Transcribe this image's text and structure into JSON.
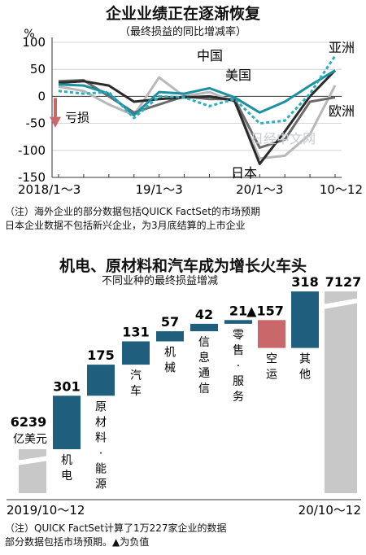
{
  "top_chart": {
    "title": "企业业绩正在逐渐恢复",
    "subtitle": "（最终损益的同比增减率）",
    "unit": "%",
    "loss_label": "亏损",
    "note_lines": [
      "（注）海外企业的部分数据包括QUICK FactSet的市场预期",
      "日本企业数据不包括新兴企业，为3月底结算的上市企业"
    ],
    "watermark": "日经中文网"
  },
  "bottom_chart": {
    "title": "机电、原材料和汽车成为增长火车头",
    "subtitle": "不同业种的最终损益增减",
    "start_label": "2019/10～12",
    "end_label": "20/10～12",
    "start_unit": "亿美元",
    "note_lines": [
      "（注）QUICK FactSet计算了1万227家企业的数据",
      "部分数据包括市场预期。▲为负值"
    ]
  },
  "chart_data": [
    {
      "type": "line",
      "ylim": [
        -150,
        100
      ],
      "yticks": [
        100,
        50,
        0,
        -50,
        -100,
        -150
      ],
      "x_tick_labels": [
        "2018/1～3",
        "19/1～3",
        "20/1～3",
        "10～12"
      ],
      "x": [
        "2018/1～3",
        "2018/4～6",
        "2018/7～9",
        "2018/10～12",
        "2019/1～3",
        "2019/4～6",
        "2019/7～9",
        "2019/10～12",
        "2020/1～3",
        "2020/4～6",
        "2020/7～9",
        "2020/10～12"
      ],
      "series": [
        {
          "name": "亚洲",
          "color": "#2ab0bd",
          "dash": true,
          "values": [
            10,
            5,
            8,
            -40,
            0,
            -2,
            -18,
            -5,
            -50,
            -45,
            5,
            75
          ]
        },
        {
          "name": "中国",
          "color": "#1e8fa0",
          "dash": false,
          "values": [
            22,
            20,
            5,
            -35,
            8,
            5,
            15,
            -2,
            -30,
            -10,
            20,
            48
          ]
        },
        {
          "name": "美国",
          "color": "#2a2a2a",
          "dash": false,
          "values": [
            25,
            28,
            20,
            -10,
            -5,
            -2,
            0,
            -8,
            -125,
            -65,
            0,
            48
          ]
        },
        {
          "name": "欧洲",
          "color": "#6b6b6b",
          "dash": false,
          "values": [
            28,
            30,
            0,
            -30,
            -15,
            0,
            -5,
            -5,
            -95,
            -80,
            -10,
            -2
          ]
        },
        {
          "name": "日本",
          "color": "#b8b8b8",
          "dash": false,
          "values": [
            18,
            10,
            -15,
            -35,
            35,
            0,
            8,
            -10,
            -115,
            -110,
            -70,
            20
          ]
        }
      ]
    },
    {
      "type": "bar",
      "subtype": "waterfall",
      "start_value": 6239,
      "end_value": 7127,
      "items": [
        {
          "label": "机电",
          "value": 301,
          "value_label": "301"
        },
        {
          "label": "原材料·能源",
          "value": 175,
          "value_label": "175"
        },
        {
          "label": "汽车",
          "value": 131,
          "value_label": "131"
        },
        {
          "label": "机械",
          "value": 57,
          "value_label": "57"
        },
        {
          "label": "信息通信",
          "value": 42,
          "value_label": "42"
        },
        {
          "label": "零售·服务",
          "value": 21,
          "value_label": "21"
        },
        {
          "label": "空运",
          "value": -157,
          "value_label": "▲157"
        },
        {
          "label": "其他",
          "value": 318,
          "value_label": "318"
        }
      ],
      "colors": {
        "increase": "#1f5f7d",
        "decrease": "#c9676a",
        "total": "#c8c8c8"
      }
    }
  ]
}
